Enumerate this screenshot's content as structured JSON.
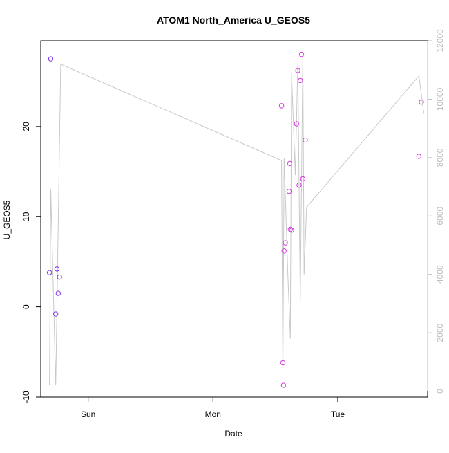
{
  "chart_data": {
    "type": "scatter",
    "title": "ATOM1 North_America U_GEOS5",
    "xlabel": "Date",
    "ylabel": "U_GEOS5",
    "x_ticks": [
      {
        "label": "Sun",
        "value": 1
      },
      {
        "label": "Mon",
        "value": 2
      },
      {
        "label": "Tue",
        "value": 3
      }
    ],
    "xlim": [
      0.62,
      3.72
    ],
    "ylim": [
      -10,
      29.5
    ],
    "y_ticks": [
      -10,
      0,
      10,
      20
    ],
    "y2lim": [
      -200,
      12000
    ],
    "y2_ticks": [
      0,
      2000,
      4000,
      6000,
      8000,
      10000,
      12000
    ],
    "colors": {
      "line": "#c8c8c8",
      "axis2": "#bebebe"
    },
    "series": [
      {
        "type": "points",
        "axis": "left",
        "points": [
          {
            "x": 0.69,
            "y": 3.8,
            "color": "#7b2fe8"
          },
          {
            "x": 0.7,
            "y": 27.5,
            "color": "#7b2fe8"
          },
          {
            "x": 0.74,
            "y": -0.8,
            "color": "#7b2fe8"
          },
          {
            "x": 0.75,
            "y": 4.2,
            "color": "#7b2fe8"
          },
          {
            "x": 0.76,
            "y": 1.5,
            "color": "#7b2fe8"
          },
          {
            "x": 0.77,
            "y": 3.3,
            "color": "#7b2fe8"
          },
          {
            "x": 2.55,
            "y": 22.3,
            "color": "#d63ae0"
          },
          {
            "x": 2.56,
            "y": -6.2,
            "color": "#d63ae0"
          },
          {
            "x": 2.565,
            "y": -8.7,
            "color": "#d63ae0"
          },
          {
            "x": 2.57,
            "y": 6.2,
            "color": "#d63ae0"
          },
          {
            "x": 2.58,
            "y": 7.1,
            "color": "#d63ae0"
          },
          {
            "x": 2.61,
            "y": 12.8,
            "color": "#d63ae0"
          },
          {
            "x": 2.615,
            "y": 15.9,
            "color": "#d63ae0"
          },
          {
            "x": 2.62,
            "y": 8.6,
            "color": "#d63ae0"
          },
          {
            "x": 2.63,
            "y": 8.5,
            "color": "#d63ae0"
          },
          {
            "x": 2.67,
            "y": 20.3,
            "color": "#d63ae0"
          },
          {
            "x": 2.68,
            "y": 26.2,
            "color": "#d63ae0"
          },
          {
            "x": 2.69,
            "y": 13.5,
            "color": "#d63ae0"
          },
          {
            "x": 2.7,
            "y": 25.1,
            "color": "#d63ae0"
          },
          {
            "x": 2.71,
            "y": 28.0,
            "color": "#d63ae0"
          },
          {
            "x": 2.72,
            "y": 14.2,
            "color": "#d63ae0"
          },
          {
            "x": 2.74,
            "y": 18.5,
            "color": "#d63ae0"
          },
          {
            "x": 3.65,
            "y": 16.7,
            "color": "#d63ae0"
          },
          {
            "x": 3.67,
            "y": 22.7,
            "color": "#d63ae0"
          }
        ]
      },
      {
        "type": "line",
        "axis": "right",
        "points": [
          {
            "x": 0.69,
            "y": 200
          },
          {
            "x": 0.7,
            "y": 6900
          },
          {
            "x": 0.74,
            "y": 200
          },
          {
            "x": 0.78,
            "y": 11200
          },
          {
            "x": 2.55,
            "y": 7900
          },
          {
            "x": 2.56,
            "y": 600
          },
          {
            "x": 2.57,
            "y": 8000
          },
          {
            "x": 2.6,
            "y": 4000
          },
          {
            "x": 2.62,
            "y": 1800
          },
          {
            "x": 2.63,
            "y": 10900
          },
          {
            "x": 2.66,
            "y": 7400
          },
          {
            "x": 2.68,
            "y": 11200
          },
          {
            "x": 2.7,
            "y": 3100
          },
          {
            "x": 2.72,
            "y": 11500
          },
          {
            "x": 2.73,
            "y": 4000
          },
          {
            "x": 2.75,
            "y": 6300
          },
          {
            "x": 3.65,
            "y": 10800
          },
          {
            "x": 3.69,
            "y": 9500
          }
        ]
      }
    ]
  }
}
